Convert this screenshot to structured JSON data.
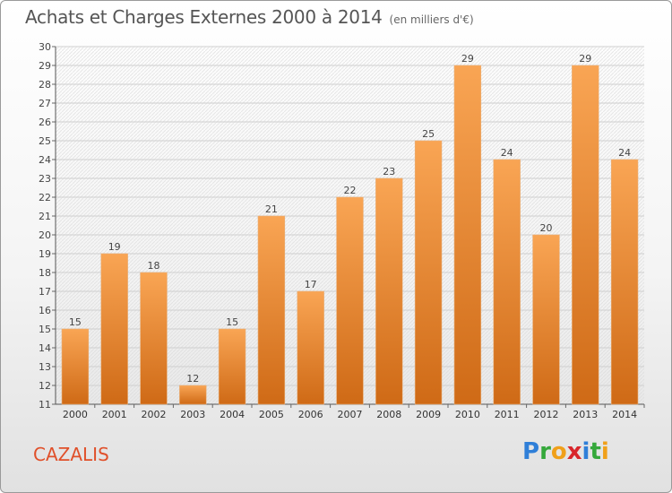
{
  "title": "Achats et Charges Externes 2000 à 2014",
  "subtitle": "(en milliers d'€)",
  "commune": "CAZALIS",
  "logo": {
    "letters": [
      "P",
      "r",
      "o",
      "x",
      "i",
      "t",
      "i"
    ],
    "colors": [
      "#2f7fd8",
      "#35a83b",
      "#f0a01a",
      "#d8262c",
      "#2f7fd8",
      "#35a83b",
      "#f0a01a"
    ]
  },
  "chart_data": {
    "type": "bar",
    "categories": [
      "2000",
      "2001",
      "2002",
      "2003",
      "2004",
      "2005",
      "2006",
      "2007",
      "2008",
      "2009",
      "2010",
      "2011",
      "2012",
      "2013",
      "2014"
    ],
    "values": [
      15,
      19,
      18,
      12,
      15,
      21,
      17,
      22,
      23,
      25,
      29,
      24,
      20,
      29,
      24
    ],
    "ylim": [
      11,
      30
    ],
    "yticks": [
      11,
      12,
      13,
      14,
      15,
      16,
      17,
      18,
      19,
      20,
      21,
      22,
      23,
      24,
      25,
      26,
      27,
      28,
      29,
      30
    ],
    "grid": true,
    "bar_color": "#f0923a"
  }
}
